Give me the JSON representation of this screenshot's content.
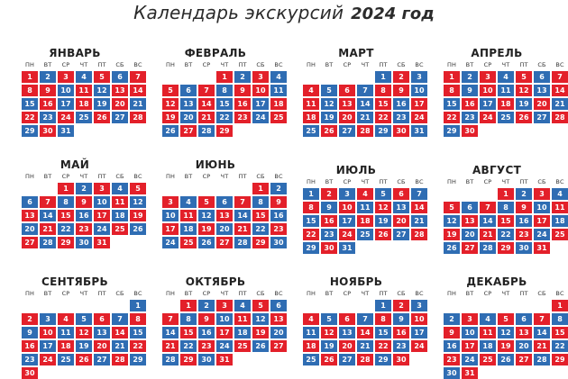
{
  "title": {
    "line1": "Календарь экскурсий",
    "line2": "2024 год"
  },
  "weekdays": [
    "ПН",
    "ВТ",
    "СР",
    "ЧТ",
    "ПТ",
    "СБ",
    "ВС"
  ],
  "colors": {
    "blue": "#2f6db3",
    "red": "#e3202a"
  },
  "months": [
    {
      "name": "ЯНВАРЬ",
      "days": 31,
      "offset": 0,
      "red": [
        1,
        2,
        3,
        4,
        5,
        6,
        7,
        8,
        9,
        10,
        13,
        14,
        16,
        17,
        20,
        21,
        22,
        23,
        24,
        27,
        28,
        29,
        30
      ]
    },
    {
      "name": "ФЕВРАЛЬ",
      "days": 29,
      "offset": 3,
      "red": [
        1,
        5,
        6,
        7,
        8,
        10,
        11,
        12,
        13,
        14,
        17,
        18,
        19,
        20,
        21,
        22,
        23,
        24,
        26,
        27,
        28,
        29
      ]
    },
    {
      "name": "МАРТ",
      "days": 31,
      "offset": 4,
      "red": [
        4,
        5,
        6,
        8,
        9,
        10,
        11,
        12,
        13,
        14,
        16,
        17,
        18,
        19,
        20,
        23,
        24,
        25
      ]
    },
    {
      "name": "АПРЕЛЬ",
      "days": 30,
      "offset": 0,
      "red": [
        1,
        2,
        3,
        4,
        5,
        6,
        7,
        8,
        9,
        10,
        11,
        12,
        13,
        14,
        15,
        16,
        17,
        18,
        19,
        20,
        21,
        22,
        23,
        24,
        25,
        26,
        27,
        28,
        29,
        30
      ]
    },
    {
      "name": "МАЙ",
      "days": 31,
      "offset": 2,
      "red": [
        1,
        2,
        3,
        4,
        5,
        6,
        7,
        8,
        9,
        10,
        11,
        12,
        13,
        14,
        15,
        16,
        17,
        18,
        19,
        20,
        21,
        22,
        23,
        24,
        25,
        26,
        27,
        28,
        29,
        30,
        31
      ]
    },
    {
      "name": "ИЮНЬ",
      "days": 30,
      "offset": 5,
      "red": [
        1,
        2,
        3,
        4,
        5,
        6,
        7,
        8,
        9,
        10,
        11,
        12,
        13,
        14,
        15,
        16,
        17,
        18,
        19,
        20,
        21,
        22,
        23,
        24,
        25,
        26,
        27,
        28,
        29,
        30
      ]
    },
    {
      "name": "ИЮЛЬ",
      "days": 31,
      "offset": 0,
      "red": [
        1,
        2,
        3,
        4,
        5,
        6,
        7,
        8,
        9,
        10,
        11,
        12,
        13,
        14,
        15,
        16,
        17,
        18,
        19,
        20,
        21,
        22,
        23,
        24,
        25,
        26,
        27,
        28,
        29,
        30,
        31
      ]
    },
    {
      "name": "АВГУСТ",
      "days": 31,
      "offset": 3,
      "red": [
        1,
        2,
        3,
        4,
        5,
        6,
        7,
        8,
        9,
        10,
        11,
        12,
        13,
        14,
        15,
        16,
        17,
        18,
        19,
        20,
        21,
        22,
        23,
        24,
        25,
        26,
        27,
        28,
        29,
        30,
        31
      ]
    },
    {
      "name": "СЕНТЯБРЬ",
      "days": 30,
      "offset": 6,
      "red": [
        2,
        3,
        4,
        5,
        6,
        7,
        8,
        9,
        10,
        11,
        12,
        13,
        14,
        15,
        16,
        17,
        18,
        19,
        20,
        21,
        22,
        23,
        24,
        25,
        26,
        27,
        28,
        29,
        30
      ]
    },
    {
      "name": "ОКТЯБРЬ",
      "days": 31,
      "offset": 1,
      "red": [
        1,
        2,
        3,
        4,
        5,
        6,
        7,
        8,
        9,
        10,
        11,
        12,
        13,
        14,
        15,
        16,
        17,
        18,
        19,
        20,
        21,
        22,
        23,
        24,
        25,
        26,
        27,
        28,
        29,
        30,
        31
      ]
    },
    {
      "name": "НОЯБРЬ",
      "days": 30,
      "offset": 4,
      "red": [
        1,
        2,
        3,
        4,
        5,
        6,
        7,
        8,
        9,
        10,
        11,
        12,
        13,
        14,
        15,
        16,
        17,
        18,
        19,
        20,
        21,
        22,
        23,
        24,
        25,
        26,
        27,
        28,
        29,
        30
      ]
    },
    {
      "name": "ДЕКАБРЬ",
      "days": 31,
      "offset": 6,
      "red": [
        1,
        2,
        3,
        4,
        5,
        6,
        7,
        8,
        9,
        10,
        11,
        12,
        13,
        14,
        15,
        16,
        17,
        18,
        19,
        20,
        21,
        22,
        23,
        24,
        25,
        26,
        27,
        28,
        29,
        30,
        31
      ]
    }
  ]
}
